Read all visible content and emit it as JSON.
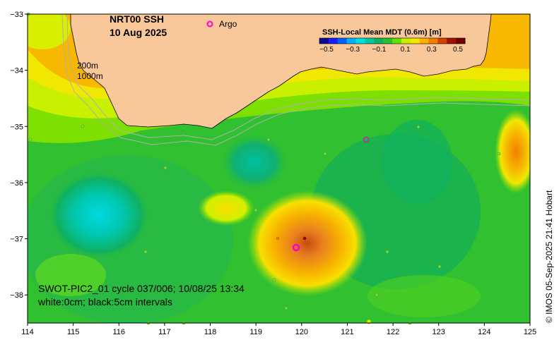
{
  "map": {
    "title_line1": "NRT00 SSH",
    "title_line2": "10 Aug 2025",
    "argo_label": "Argo",
    "depth_label_1": "200m",
    "depth_label_2": "1000m",
    "swot_line1": "SWOT-PIC2_01 cycle 037/006; 10/08/25 13:34",
    "swot_line2": "white:0cm; black:5cm intervals",
    "credit": "© IMOS 05-Sep-2025 21:41 Hobart",
    "colorbar": {
      "title": "SSH-Local Mean MDT (0.6m) [m]",
      "ticks": [
        "−0.5",
        "−0.3",
        "−0.1",
        "0.1",
        "0.3",
        "0.5"
      ],
      "colors": [
        "#0a0a8c",
        "#1a1aff",
        "#0060ff",
        "#00b0ff",
        "#00e0e0",
        "#00c8a0",
        "#10b060",
        "#28c030",
        "#60e000",
        "#c8f000",
        "#f8e800",
        "#ffb000",
        "#f08000",
        "#d84000",
        "#a01000",
        "#700000"
      ]
    },
    "x_axis": {
      "min": 114,
      "max": 125,
      "ticks": [
        "114",
        "115",
        "116",
        "117",
        "118",
        "119",
        "120",
        "121",
        "122",
        "123",
        "124",
        "125"
      ]
    },
    "y_axis": {
      "min": -38.5,
      "max": -33,
      "ticks": [
        "−33",
        "−34",
        "−35",
        "−36",
        "−37",
        "−38"
      ]
    },
    "colors": {
      "land": "#f9c89a",
      "coast": "#000000",
      "isobath": "#b0b0b0",
      "argo": "#ff00cc"
    }
  }
}
